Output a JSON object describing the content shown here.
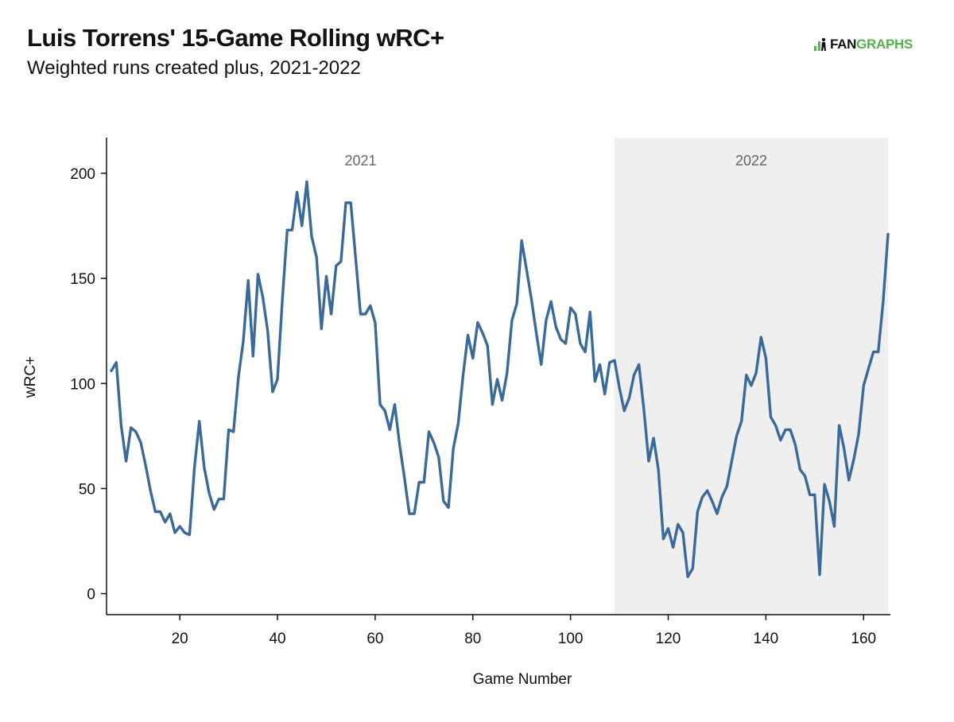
{
  "header": {
    "title": "Luis Torrens' 15-Game Rolling wRC+",
    "subtitle": "Weighted runs created plus, 2021-2022"
  },
  "logo": {
    "prefix": "FAN",
    "suffix": "GRAPHS",
    "brand_color": "#53b34f"
  },
  "colors": {
    "line": "#3a6a9a",
    "band": "#efefef",
    "axis": "#111111"
  },
  "chart_data": {
    "type": "line",
    "title": "Luis Torrens' 15-Game Rolling wRC+",
    "subtitle": "Weighted runs created plus, 2021-2022",
    "xlabel": "Game Number",
    "ylabel": "wRC+",
    "xlim": [
      5,
      165
    ],
    "ylim": [
      -10,
      217
    ],
    "xticks": [
      20,
      40,
      60,
      80,
      100,
      120,
      140,
      160
    ],
    "yticks": [
      0,
      50,
      100,
      150,
      200
    ],
    "grid": false,
    "bands": [
      {
        "label": "2021",
        "x_start": 5,
        "x_end": 109,
        "shaded": false
      },
      {
        "label": "2022",
        "x_start": 109,
        "x_end": 165,
        "shaded": true
      }
    ],
    "series": [
      {
        "name": "15-Game Rolling wRC+",
        "x": [
          6,
          7,
          8,
          9,
          10,
          11,
          12,
          13,
          14,
          15,
          16,
          17,
          18,
          19,
          20,
          21,
          22,
          23,
          24,
          25,
          26,
          27,
          28,
          29,
          30,
          31,
          32,
          33,
          34,
          35,
          36,
          37,
          38,
          39,
          40,
          41,
          42,
          43,
          44,
          45,
          46,
          47,
          48,
          49,
          50,
          51,
          52,
          53,
          54,
          55,
          56,
          57,
          58,
          59,
          60,
          61,
          62,
          63,
          64,
          65,
          66,
          67,
          68,
          69,
          70,
          71,
          72,
          73,
          74,
          75,
          76,
          77,
          78,
          79,
          80,
          81,
          82,
          83,
          84,
          85,
          86,
          87,
          88,
          89,
          90,
          91,
          92,
          93,
          94,
          95,
          96,
          97,
          98,
          99,
          100,
          101,
          102,
          103,
          104,
          105,
          106,
          107,
          108,
          109,
          110,
          111,
          112,
          113,
          114,
          115,
          116,
          117,
          118,
          119,
          120,
          121,
          122,
          123,
          124,
          125,
          126,
          127,
          128,
          129,
          130,
          131,
          132,
          133,
          134,
          135,
          136,
          137,
          138,
          139,
          140,
          141,
          142,
          143,
          144,
          145,
          146,
          147,
          148,
          149,
          150,
          151,
          152,
          153,
          154,
          155,
          156,
          157,
          158,
          159,
          160,
          161,
          162,
          163,
          164,
          165
        ],
        "values": [
          106,
          110,
          80,
          63,
          79,
          77,
          72,
          61,
          49,
          39,
          39,
          34,
          38,
          29,
          32,
          29,
          28,
          60,
          82,
          60,
          48,
          40,
          45,
          45,
          78,
          77,
          103,
          120,
          149,
          113,
          152,
          141,
          125,
          96,
          102,
          140,
          173,
          173,
          191,
          175,
          196,
          170,
          160,
          126,
          151,
          133,
          156,
          158,
          186,
          186,
          160,
          133,
          133,
          137,
          129,
          90,
          87,
          78,
          90,
          71,
          55,
          38,
          38,
          53,
          53,
          77,
          72,
          65,
          44,
          41,
          69,
          81,
          104,
          123,
          112,
          129,
          124,
          118,
          90,
          102,
          92,
          105,
          130,
          138,
          168,
          154,
          140,
          124,
          109,
          130,
          139,
          127,
          121,
          119,
          136,
          133,
          119,
          115,
          134,
          101,
          109,
          95,
          110,
          111,
          98,
          87,
          93,
          104,
          109,
          88,
          63,
          74,
          59,
          26,
          31,
          22,
          33,
          29,
          8,
          12,
          39,
          46,
          49,
          44,
          38,
          46,
          51,
          63,
          75,
          82,
          104,
          99,
          105,
          122,
          112,
          84,
          80,
          73,
          78,
          78,
          71,
          59,
          56,
          47,
          47,
          9,
          52,
          44,
          32,
          80,
          69,
          54,
          64,
          76,
          99,
          107,
          115,
          115,
          139,
          171
        ]
      }
    ]
  }
}
